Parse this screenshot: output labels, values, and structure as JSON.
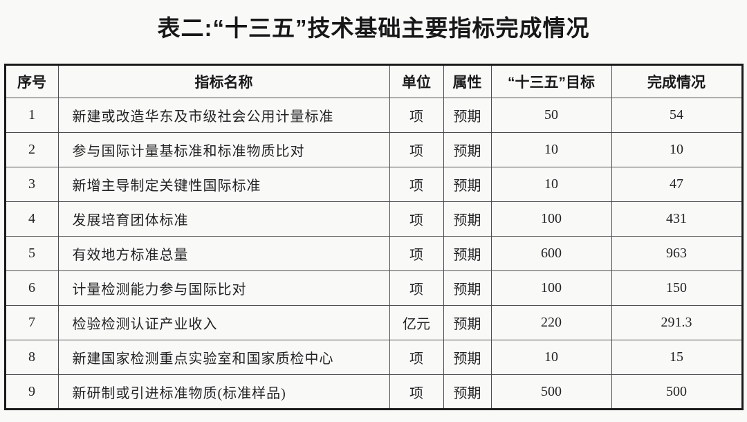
{
  "title": "表二:“十三五”技术基础主要指标完成情况",
  "table": {
    "headers": [
      "序号",
      "指标名称",
      "单位",
      "属性",
      "“十三五”目标",
      "完成情况"
    ],
    "rows": [
      [
        "1",
        "新建或改造华东及市级社会公用计量标准",
        "项",
        "预期",
        "50",
        "54"
      ],
      [
        "2",
        "参与国际计量基标准和标准物质比对",
        "项",
        "预期",
        "10",
        "10"
      ],
      [
        "3",
        "新增主导制定关键性国际标准",
        "项",
        "预期",
        "10",
        "47"
      ],
      [
        "4",
        "发展培育团体标准",
        "项",
        "预期",
        "100",
        "431"
      ],
      [
        "5",
        "有效地方标准总量",
        "项",
        "预期",
        "600",
        "963"
      ],
      [
        "6",
        "计量检测能力参与国际比对",
        "项",
        "预期",
        "100",
        "150"
      ],
      [
        "7",
        "检验检测认证产业收入",
        "亿元",
        "预期",
        "220",
        "291.3"
      ],
      [
        "8",
        "新建国家检测重点实验室和国家质检中心",
        "项",
        "预期",
        "10",
        "15"
      ],
      [
        "9",
        "新研制或引进标准物质(标准样品)",
        "项",
        "预期",
        "500",
        "500"
      ]
    ]
  }
}
